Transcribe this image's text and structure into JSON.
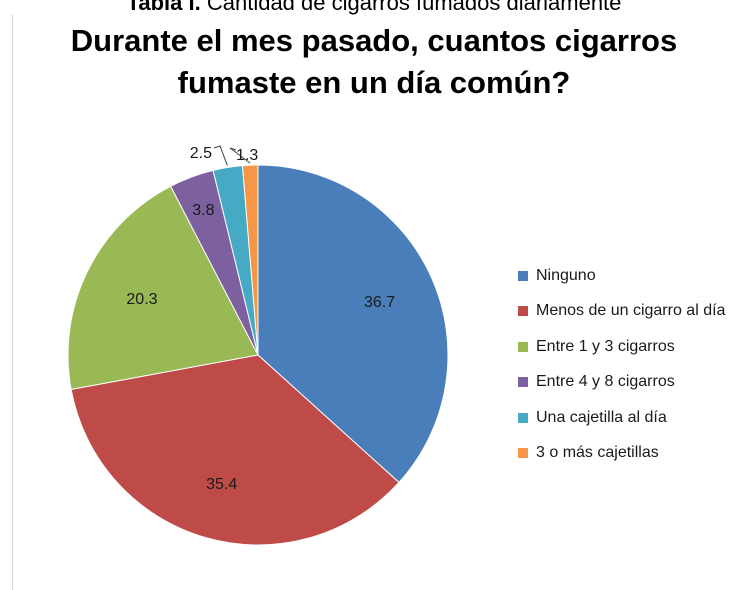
{
  "caption": {
    "bold": "Tabla I.",
    "text": " Cantidad de cigarros fumados diariamente"
  },
  "chart_data": {
    "type": "pie",
    "title": "Durante el mes pasado, cuantos cigarros fumaste en un día común?",
    "title_lines": [
      "Durante el mes pasado, cuantos cigarros",
      "fumaste en un día común?"
    ],
    "legend_position": "right",
    "slices": [
      {
        "label": "Ninguno",
        "value": 36.7,
        "value_label": "36.7",
        "color": "#4a7ebb"
      },
      {
        "label": "Menos de un cigarro al día",
        "value": 35.4,
        "value_label": "35.4",
        "color": "#be4b48"
      },
      {
        "label": "Entre 1 y 3 cigarros",
        "value": 20.3,
        "value_label": "20.3",
        "color": "#98b954"
      },
      {
        "label": "Entre 4 y 8 cigarros",
        "value": 3.8,
        "value_label": "3.8",
        "color": "#7d60a0"
      },
      {
        "label": "Una cajetilla al día",
        "value": 2.5,
        "value_label": "2.5",
        "color": "#46aac4"
      },
      {
        "label": "3 o más cajetillas",
        "value": 1.3,
        "value_label": "1.3",
        "color": "#f79646"
      }
    ]
  }
}
